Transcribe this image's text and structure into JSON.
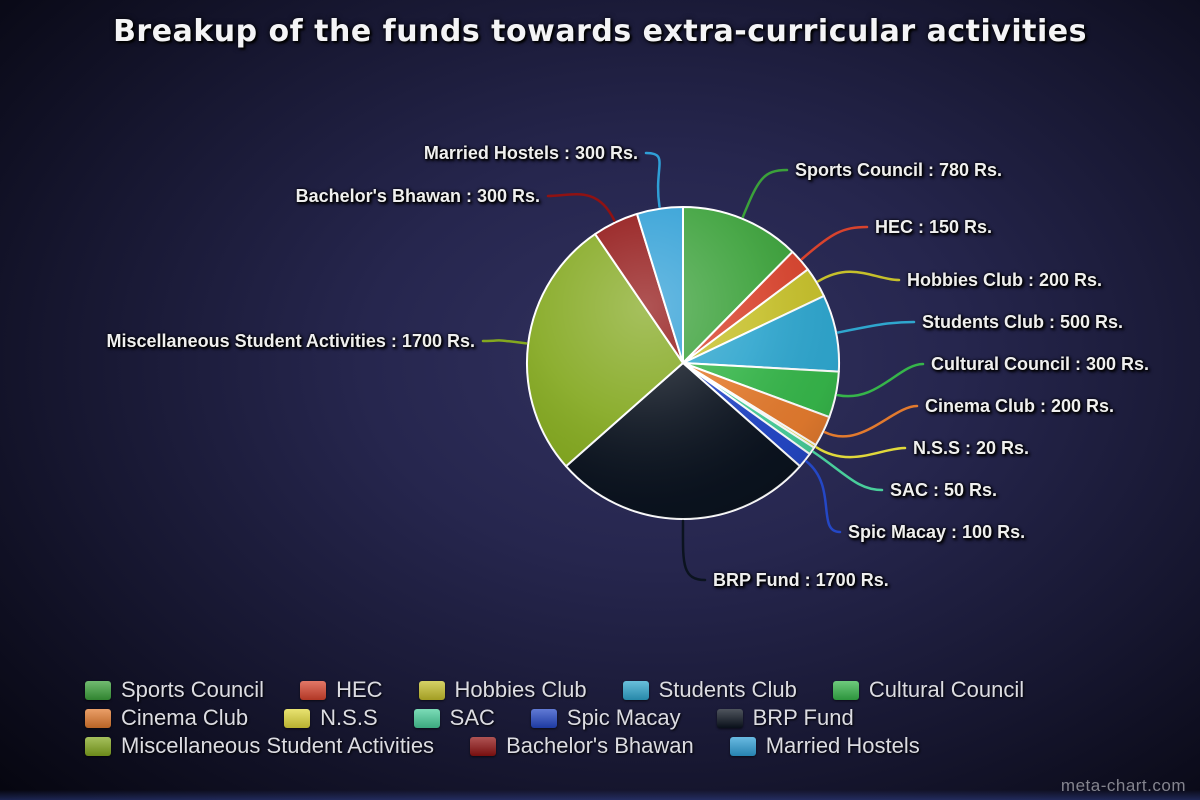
{
  "title": "Breakup of the funds towards extra-curricular activities",
  "watermark": "meta-chart.com",
  "chart_data": {
    "type": "pie",
    "title": "Breakup of the funds towards extra-curricular activities",
    "unit": "Rs.",
    "total": 6300,
    "start_angle_deg": 0,
    "direction": "clockwise",
    "legend_position": "bottom",
    "background_colors": {
      "center": "#2b2b56",
      "edge": "#000000"
    },
    "slices": [
      {
        "name": "Sports Council",
        "value": 780,
        "color": "#3BA13A",
        "callout": "Sports Council : 780 Rs."
      },
      {
        "name": "HEC",
        "value": 150,
        "color": "#D8432D",
        "callout": "HEC : 150 Rs."
      },
      {
        "name": "Hobbies Club",
        "value": 200,
        "color": "#C6C02B",
        "callout": "Hobbies Club : 200 Rs."
      },
      {
        "name": "Students Club",
        "value": 500,
        "color": "#2FA6CE",
        "callout": "Students Club : 500 Rs."
      },
      {
        "name": "Cultural Council",
        "value": 300,
        "color": "#36B54A",
        "callout": "Cultural Council : 300 Rs."
      },
      {
        "name": "Cinema Club",
        "value": 200,
        "color": "#E27A2E",
        "callout": "Cinema Club : 200 Rs."
      },
      {
        "name": "N.S.S",
        "value": 20,
        "color": "#E0D83B",
        "callout": "N.S.S : 20 Rs."
      },
      {
        "name": "SAC",
        "value": 50,
        "color": "#49CE9B",
        "callout": "SAC : 50 Rs."
      },
      {
        "name": "Spic Macay",
        "value": 100,
        "color": "#2447C5",
        "callout": "Spic Macay : 100 Rs."
      },
      {
        "name": "BRP Fund",
        "value": 1700,
        "color": "#0B131F",
        "callout": "BRP Fund : 1700 Rs."
      },
      {
        "name": "Miscellaneous Student Activities",
        "value": 1700,
        "color": "#83A81F",
        "callout": "Miscellaneous Student Activities : 1700 Rs."
      },
      {
        "name": "Bachelor's Bhawan",
        "value": 300,
        "color": "#901212",
        "callout": "Bachelor's Bhawan : 300 Rs."
      },
      {
        "name": "Married Hostels",
        "value": 300,
        "color": "#2F9FD6",
        "callout": "Married Hostels : 300 Rs."
      }
    ],
    "legend_rows": [
      [
        "Sports Council",
        "HEC",
        "Hobbies Club",
        "Students Club",
        "Cultural Council"
      ],
      [
        "Cinema Club",
        "N.S.S",
        "SAC",
        "Spic Macay",
        "BRP Fund"
      ],
      [
        "Miscellaneous Student Activities",
        "Bachelor's Bhawan",
        "Married Hostels"
      ]
    ]
  }
}
